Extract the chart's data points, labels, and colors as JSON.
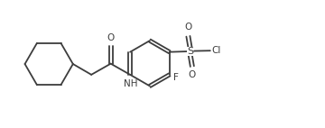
{
  "background_color": "#ffffff",
  "line_color": "#3d3d3d",
  "text_color": "#3d3d3d",
  "line_width": 1.3,
  "font_size": 7.5,
  "figsize": [
    3.6,
    1.42
  ],
  "dpi": 100,
  "xlim": [
    0,
    9.5
  ],
  "ylim": [
    0,
    3.8
  ]
}
